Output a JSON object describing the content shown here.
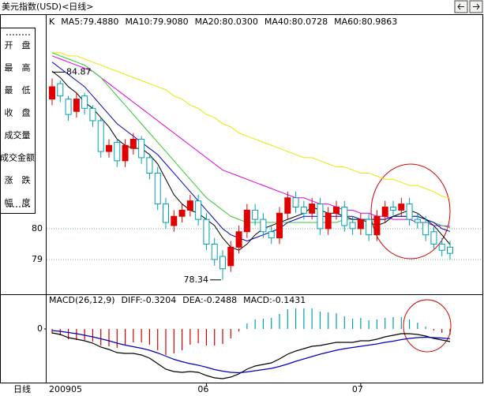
{
  "period_label": "日线",
  "side_labels": [
    "开　盘",
    "最　高",
    "最　低",
    "收　盘",
    "成交量",
    "成交金额",
    "涨　跌",
    "幅　度"
  ],
  "chart_data": [
    {
      "type": "candlestick",
      "title": "美元指数(USD)<日线>",
      "label": "K",
      "categories": [
        "200905",
        null,
        null,
        null,
        null,
        null,
        null,
        null,
        null,
        null,
        null,
        null,
        null,
        null,
        null,
        null,
        null,
        null,
        null,
        "06",
        null,
        null,
        null,
        null,
        null,
        null,
        null,
        null,
        null,
        null,
        null,
        null,
        null,
        null,
        null,
        null,
        null,
        null,
        "07",
        null,
        null,
        null,
        null,
        null,
        null,
        null,
        null,
        null,
        null,
        null
      ],
      "open": [
        84.2,
        84.7,
        84.2,
        83.8,
        84.3,
        83.9,
        83.5,
        82.5,
        82.8,
        82.2,
        82.6,
        82.9,
        82.3,
        81.8,
        80.8,
        80.1,
        80.4,
        80.6,
        80.9,
        80.3,
        79.5,
        79.1,
        78.8,
        79.4,
        79.9,
        80.6,
        80.3,
        79.9,
        79.7,
        80.5,
        81.0,
        80.7,
        80.5,
        80.8,
        80.0,
        80.5,
        80.7,
        80.2,
        80.0,
        80.3,
        79.8,
        80.4,
        80.7,
        80.6,
        80.8,
        80.3,
        80.2,
        79.9,
        79.5,
        79.4
      ],
      "high": [
        84.87,
        84.8,
        84.3,
        84.4,
        84.4,
        84.0,
        83.6,
        82.9,
        82.9,
        82.9,
        83.1,
        83.0,
        82.4,
        82.0,
        81.0,
        80.6,
        80.8,
        81.1,
        81.1,
        80.5,
        79.7,
        79.3,
        79.6,
        80.1,
        80.8,
        80.8,
        80.5,
        80.1,
        80.7,
        81.2,
        81.2,
        80.9,
        81.0,
        81.0,
        80.7,
        80.9,
        80.9,
        80.4,
        80.5,
        80.5,
        80.6,
        80.9,
        80.9,
        81.0,
        81.0,
        80.5,
        80.4,
        80.1,
        79.7,
        79.6
      ],
      "low": [
        84.0,
        84.1,
        83.5,
        83.6,
        83.7,
        83.3,
        82.3,
        82.3,
        82.0,
        82.0,
        82.4,
        82.1,
        81.6,
        80.6,
        80.0,
        79.9,
        80.2,
        80.4,
        80.1,
        79.3,
        78.8,
        78.34,
        78.6,
        79.2,
        79.7,
        80.1,
        79.7,
        79.5,
        79.5,
        80.3,
        80.5,
        80.3,
        80.3,
        79.8,
        79.8,
        80.3,
        79.9,
        79.8,
        79.8,
        79.6,
        79.6,
        80.2,
        80.4,
        80.4,
        80.1,
        80.0,
        79.6,
        79.3,
        79.1,
        79.0
      ],
      "close": [
        84.6,
        84.3,
        83.7,
        84.2,
        83.9,
        83.5,
        82.5,
        82.7,
        82.2,
        82.7,
        82.9,
        82.3,
        81.8,
        80.8,
        80.2,
        80.4,
        80.6,
        80.9,
        80.3,
        79.5,
        79.0,
        78.7,
        79.4,
        79.9,
        80.6,
        80.3,
        79.9,
        79.7,
        80.5,
        81.0,
        80.7,
        80.5,
        80.8,
        80.0,
        80.5,
        80.7,
        80.1,
        80.0,
        80.3,
        79.8,
        80.4,
        80.7,
        80.6,
        80.8,
        80.3,
        80.2,
        79.8,
        79.5,
        79.3,
        79.2
      ],
      "up_color": "#e00000",
      "down_color": "#00a0b0",
      "series": [
        {
          "name": "MA5:79.4880",
          "color": "#000000",
          "values": [
            85.1,
            84.9,
            84.6,
            84.4,
            84.1,
            83.9,
            83.6,
            83.3,
            82.9,
            82.7,
            82.6,
            82.6,
            82.4,
            82.1,
            81.6,
            81.1,
            80.8,
            80.6,
            80.5,
            80.3,
            80.1,
            79.7,
            79.4,
            79.3,
            79.5,
            79.8,
            80.0,
            80.1,
            80.2,
            80.3,
            80.4,
            80.5,
            80.7,
            80.6,
            80.5,
            80.5,
            80.4,
            80.3,
            80.3,
            80.2,
            80.1,
            80.2,
            80.4,
            80.5,
            80.6,
            80.5,
            80.3,
            80.1,
            79.8,
            79.488
          ]
        },
        {
          "name": "MA10:79.9080",
          "color": "#0000c0",
          "values": [
            85.4,
            85.2,
            85.0,
            84.8,
            84.6,
            84.3,
            84.0,
            83.7,
            83.4,
            83.2,
            83.0,
            82.8,
            82.6,
            82.4,
            82.1,
            81.8,
            81.5,
            81.2,
            80.9,
            80.6,
            80.3,
            80.0,
            79.8,
            79.7,
            79.6,
            79.7,
            79.8,
            79.9,
            80.0,
            80.2,
            80.3,
            80.4,
            80.4,
            80.4,
            80.4,
            80.4,
            80.4,
            80.4,
            80.3,
            80.3,
            80.3,
            80.3,
            80.4,
            80.4,
            80.4,
            80.4,
            80.3,
            80.2,
            80.0,
            79.908
          ]
        },
        {
          "name": "MA20:80.0300",
          "color": "#30c830",
          "values": [
            85.7,
            85.6,
            85.5,
            85.4,
            85.3,
            85.1,
            84.9,
            84.6,
            84.3,
            84.0,
            83.7,
            83.4,
            83.1,
            82.8,
            82.5,
            82.2,
            81.9,
            81.6,
            81.3,
            81.0,
            80.8,
            80.6,
            80.4,
            80.3,
            80.2,
            80.2,
            80.2,
            80.2,
            80.2,
            80.2,
            80.2,
            80.2,
            80.2,
            80.2,
            80.2,
            80.2,
            80.3,
            80.3,
            80.3,
            80.3,
            80.3,
            80.3,
            80.4,
            80.4,
            80.4,
            80.4,
            80.3,
            80.2,
            80.1,
            80.03
          ]
        },
        {
          "name": "MA40:80.0728",
          "color": "#e000e0",
          "values": [
            85.6,
            85.5,
            85.4,
            85.3,
            85.2,
            85.1,
            84.9,
            84.7,
            84.5,
            84.3,
            84.1,
            83.9,
            83.7,
            83.5,
            83.3,
            83.1,
            82.9,
            82.7,
            82.5,
            82.3,
            82.1,
            81.9,
            81.8,
            81.7,
            81.6,
            81.5,
            81.4,
            81.3,
            81.2,
            81.1,
            81.0,
            81.0,
            80.9,
            80.8,
            80.8,
            80.7,
            80.6,
            80.6,
            80.5,
            80.5,
            80.4,
            80.4,
            80.3,
            80.3,
            80.3,
            80.2,
            80.2,
            80.1,
            80.1,
            80.0728
          ]
        },
        {
          "name": "MA60:80.9863",
          "color": "#e8e800",
          "values": [
            85.7,
            85.7,
            85.6,
            85.6,
            85.5,
            85.4,
            85.3,
            85.2,
            85.1,
            85.0,
            84.9,
            84.8,
            84.7,
            84.6,
            84.5,
            84.3,
            84.2,
            84.0,
            83.9,
            83.7,
            83.6,
            83.4,
            83.3,
            83.1,
            83.0,
            82.9,
            82.8,
            82.7,
            82.6,
            82.5,
            82.4,
            82.3,
            82.3,
            82.2,
            82.1,
            82.0,
            82.0,
            81.9,
            81.8,
            81.8,
            81.7,
            81.6,
            81.6,
            81.5,
            81.4,
            81.4,
            81.3,
            81.2,
            81.05,
            80.9863
          ]
        }
      ],
      "ylim": [
        77.9,
        86.9
      ],
      "yticks": [
        79,
        80
      ],
      "grid": true
    },
    {
      "type": "macd",
      "title": "MACD(26,12,9)",
      "ylim": [
        -1.36,
        0.86
      ],
      "yticks": [
        0
      ],
      "up_color": "#00a0b0",
      "down_color": "#d00000",
      "series": [
        {
          "name": "DIFF:-0.3204",
          "color": "#000000",
          "style": "line",
          "values": [
            -0.1,
            -0.14,
            -0.22,
            -0.26,
            -0.3,
            -0.36,
            -0.46,
            -0.52,
            -0.6,
            -0.62,
            -0.62,
            -0.66,
            -0.74,
            -0.88,
            -1.02,
            -1.08,
            -1.1,
            -1.08,
            -1.1,
            -1.18,
            -1.24,
            -1.26,
            -1.22,
            -1.14,
            -1.02,
            -0.94,
            -0.9,
            -0.86,
            -0.76,
            -0.64,
            -0.56,
            -0.5,
            -0.44,
            -0.42,
            -0.38,
            -0.34,
            -0.34,
            -0.34,
            -0.3,
            -0.3,
            -0.26,
            -0.2,
            -0.16,
            -0.12,
            -0.12,
            -0.14,
            -0.18,
            -0.24,
            -0.28,
            -0.3204
          ]
        },
        {
          "name": "DEA:-0.2488",
          "color": "#0000c0",
          "style": "line",
          "values": [
            -0.04,
            -0.06,
            -0.09,
            -0.12,
            -0.16,
            -0.2,
            -0.25,
            -0.3,
            -0.36,
            -0.41,
            -0.45,
            -0.49,
            -0.54,
            -0.61,
            -0.69,
            -0.77,
            -0.83,
            -0.88,
            -0.92,
            -0.97,
            -1.03,
            -1.07,
            -1.1,
            -1.11,
            -1.09,
            -1.06,
            -1.03,
            -1.0,
            -0.95,
            -0.89,
            -0.82,
            -0.76,
            -0.7,
            -0.64,
            -0.59,
            -0.54,
            -0.5,
            -0.47,
            -0.44,
            -0.41,
            -0.38,
            -0.34,
            -0.31,
            -0.27,
            -0.24,
            -0.22,
            -0.21,
            -0.22,
            -0.23,
            -0.2488
          ]
        },
        {
          "name": "MACD:-0.1431",
          "color": "#303030",
          "style": "bar",
          "values": [
            -0.12,
            -0.16,
            -0.26,
            -0.28,
            -0.28,
            -0.32,
            -0.42,
            -0.44,
            -0.48,
            -0.42,
            -0.34,
            -0.34,
            -0.4,
            -0.54,
            -0.66,
            -0.62,
            -0.54,
            -0.4,
            -0.36,
            -0.42,
            -0.42,
            -0.38,
            -0.24,
            -0.06,
            0.14,
            0.24,
            0.26,
            0.28,
            0.38,
            0.5,
            0.52,
            0.52,
            0.52,
            0.44,
            0.42,
            0.4,
            0.32,
            0.26,
            0.28,
            0.22,
            0.24,
            0.28,
            0.3,
            0.3,
            0.24,
            0.16,
            0.06,
            -0.04,
            -0.1,
            -0.1431
          ]
        }
      ]
    }
  ]
}
